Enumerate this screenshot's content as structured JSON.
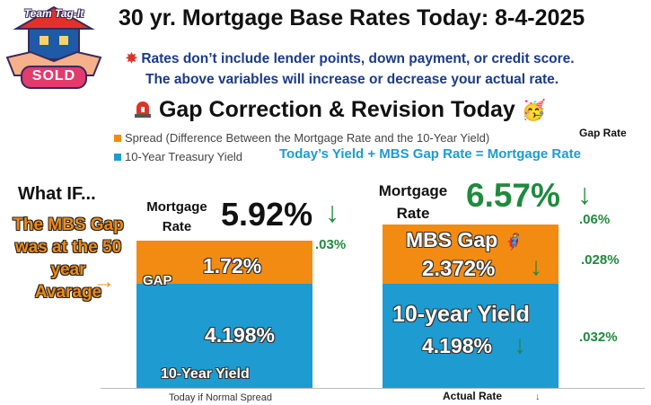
{
  "logo": {
    "line1": "Team Tag-It",
    "line2": "SOLD"
  },
  "title": "30 yr. Mortgage Base Rates Today: 8-4-2025",
  "notes": {
    "line1": "Rates don’t include lender points, down payment, or credit score.",
    "line2": "The above variables will increase or decrease your actual rate."
  },
  "subtitle": "Gap Correction  & Revision Today",
  "legend": [
    {
      "label": "Spread (Difference Between the Mortgage Rate and the 10-Year Yield)",
      "color": "#f28b12"
    },
    {
      "label": "10-Year Treasury Yield",
      "color": "#1e9bd1"
    }
  ],
  "gap_rate_label": "Gap Rate",
  "formula": "Today’s  Yield +  MBS Gap Rate = Mortgage Rate",
  "what_if": {
    "heading": "What IF...",
    "lines": [
      "The MBS Gap",
      "was at the 50",
      "year",
      "Avarage"
    ],
    "arrow": "→"
  },
  "bar1": {
    "mortgage_label_1": "Mortgage",
    "mortgage_label_2": "Rate",
    "mortgage_rate": "5.92%",
    "change": ".03%",
    "gap_label": "GAP",
    "gap_value": "1.72%",
    "yield_value": "4.198%",
    "yield_label": "10-Year Yield"
  },
  "bar2": {
    "mortgage_label_1": "Mortgage",
    "mortgage_label_2": "Rate",
    "mortgage_rate": "6.57%",
    "rate_change": ".06%",
    "gap_label": "MBS Gap",
    "gap_value": "2.372%",
    "gap_change": ".028%",
    "yield_label": "10-year Yield",
    "yield_value": "4.198%",
    "yield_change": ".032%"
  },
  "down_arrow": "↓",
  "chart_data": {
    "type": "bar",
    "stacked": true,
    "categories": [
      "Today if Normal Spread",
      "Actual Rate"
    ],
    "series": [
      {
        "name": "10-Year Treasury Yield",
        "values": [
          4.198,
          4.198
        ],
        "color": "#1e9bd1"
      },
      {
        "name": "Spread (Difference Between the Mortgage Rate and the 10-Year Yield)",
        "values": [
          1.72,
          2.372
        ],
        "color": "#f28b12"
      }
    ],
    "totals": [
      5.92,
      6.57
    ],
    "ylim": [
      0,
      6.57
    ]
  }
}
